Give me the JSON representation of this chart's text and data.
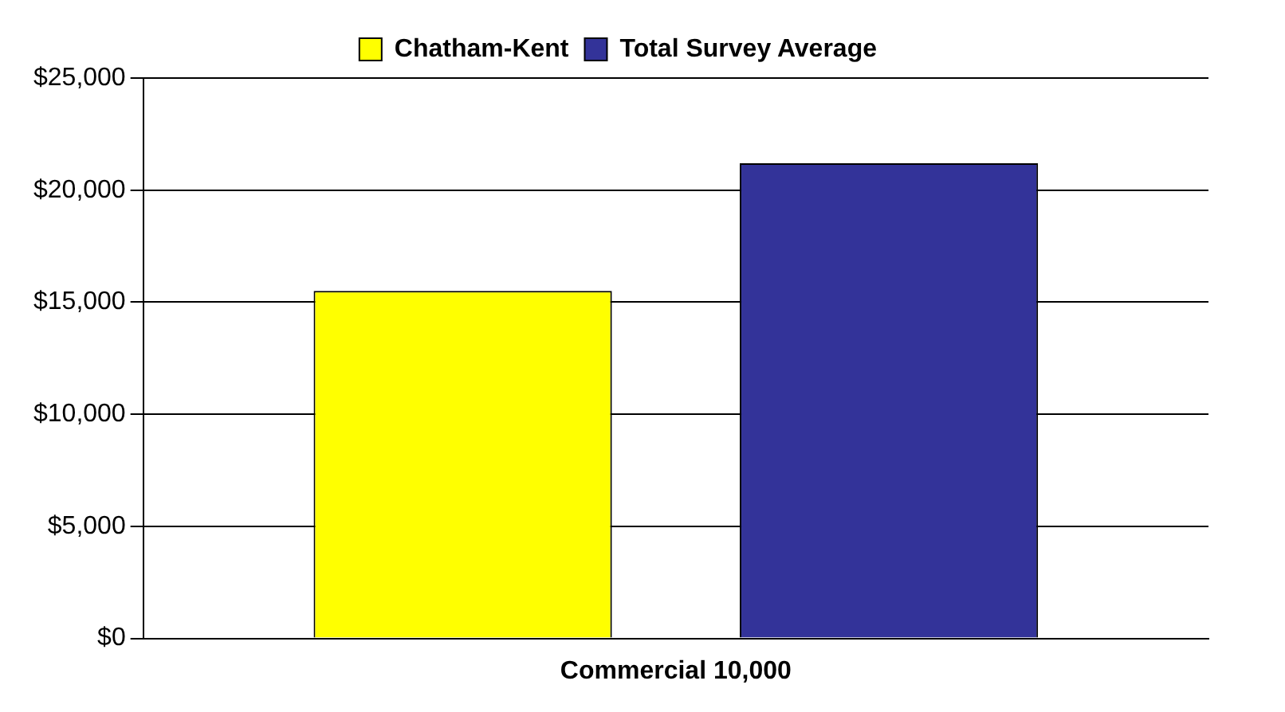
{
  "chart_data": {
    "type": "bar",
    "categories": [
      "Commercial 10,000"
    ],
    "series": [
      {
        "name": "Chatham-Kent",
        "color": "#ffff00",
        "values": [
          15500
        ]
      },
      {
        "name": "Total Survey Average",
        "color": "#333399",
        "values": [
          21200
        ]
      }
    ],
    "ylim": [
      0,
      25000
    ],
    "yticks": [
      {
        "value": 0,
        "label": "$0"
      },
      {
        "value": 5000,
        "label": "$5,000"
      },
      {
        "value": 10000,
        "label": "$10,000"
      },
      {
        "value": 15000,
        "label": "$15,000"
      },
      {
        "value": 20000,
        "label": "$20,000"
      },
      {
        "value": 25000,
        "label": "$25,000"
      }
    ],
    "grid": "y",
    "legend": "top"
  }
}
